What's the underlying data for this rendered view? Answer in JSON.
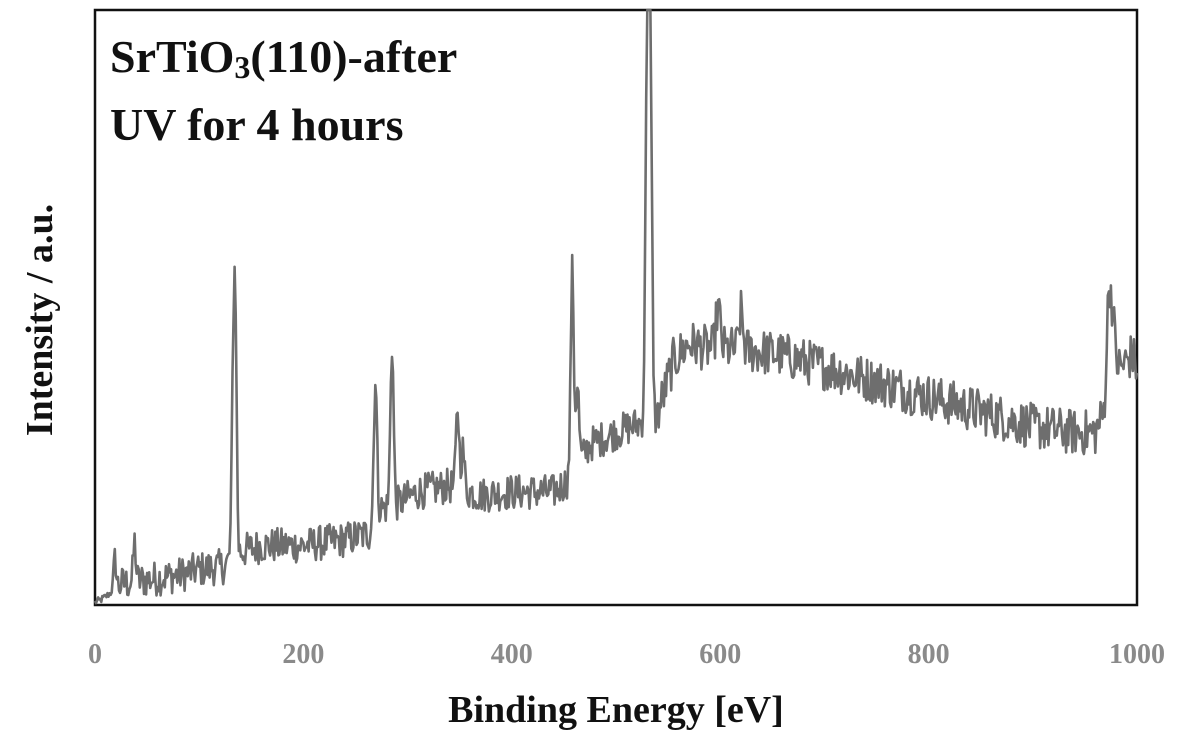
{
  "chart_data": {
    "type": "line",
    "annotation": {
      "line1": "SrTiO",
      "subscript": "3",
      "line1_rest": "(110)-after",
      "line2": "UV for 4 hours"
    },
    "xlabel": "Binding Energy [eV]",
    "ylabel": "Intensity / a.u.",
    "xlim": [
      0,
      1000
    ],
    "ylim": [
      0,
      100
    ],
    "xticks": [
      0,
      200,
      400,
      600,
      800,
      1000
    ],
    "x_tick_labels": [
      "0",
      "200",
      "400",
      "600",
      "800",
      "1000"
    ],
    "y_tick_labels": [],
    "grid": false,
    "legend": "none",
    "series_color": "#6e6e6e",
    "baseline": [
      [
        0,
        0.5
      ],
      [
        5,
        0.8
      ],
      [
        15,
        2
      ],
      [
        25,
        3.5
      ],
      [
        40,
        4
      ],
      [
        60,
        4.5
      ],
      [
        80,
        5
      ],
      [
        100,
        6
      ],
      [
        125,
        6.5
      ],
      [
        130,
        8
      ],
      [
        140,
        9
      ],
      [
        160,
        10
      ],
      [
        200,
        10
      ],
      [
        240,
        11
      ],
      [
        263,
        12
      ],
      [
        270,
        16
      ],
      [
        290,
        17
      ],
      [
        310,
        19
      ],
      [
        340,
        20
      ],
      [
        370,
        18.5
      ],
      [
        400,
        19
      ],
      [
        440,
        19
      ],
      [
        455,
        21
      ],
      [
        475,
        27
      ],
      [
        500,
        29
      ],
      [
        530,
        31
      ],
      [
        538,
        31
      ],
      [
        545,
        35
      ],
      [
        555,
        41
      ],
      [
        570,
        44
      ],
      [
        590,
        43
      ],
      [
        620,
        43
      ],
      [
        660,
        42
      ],
      [
        700,
        40
      ],
      [
        740,
        38
      ],
      [
        780,
        36
      ],
      [
        820,
        34
      ],
      [
        860,
        32
      ],
      [
        900,
        30
      ],
      [
        940,
        29
      ],
      [
        960,
        29
      ],
      [
        968,
        32
      ],
      [
        975,
        40
      ],
      [
        985,
        40
      ],
      [
        995,
        42
      ],
      [
        1000,
        40
      ]
    ],
    "peaks": [
      {
        "x": 19,
        "y": 9,
        "width": 1.2
      },
      {
        "x": 38,
        "y": 10.5,
        "width": 1.2
      },
      {
        "x": 133,
        "y": 44,
        "width": 1.5
      },
      {
        "x": 135,
        "y": 36,
        "width": 1.2
      },
      {
        "x": 269,
        "y": 38,
        "width": 1.5
      },
      {
        "x": 285,
        "y": 44,
        "width": 1.5
      },
      {
        "x": 348,
        "y": 33,
        "width": 1.5
      },
      {
        "x": 353,
        "y": 26,
        "width": 1.5
      },
      {
        "x": 458,
        "y": 56,
        "width": 1.5
      },
      {
        "x": 463,
        "y": 37,
        "width": 1.5
      },
      {
        "x": 530,
        "y": 96,
        "width": 1.6
      },
      {
        "x": 533,
        "y": 87,
        "width": 1.6
      },
      {
        "x": 598,
        "y": 50,
        "width": 2.0
      },
      {
        "x": 620,
        "y": 49,
        "width": 1.8
      },
      {
        "x": 973,
        "y": 52,
        "width": 2.0
      },
      {
        "x": 977,
        "y": 47,
        "width": 2.0
      }
    ],
    "noise_amplitude": 3,
    "sample_step_ev": 1
  }
}
